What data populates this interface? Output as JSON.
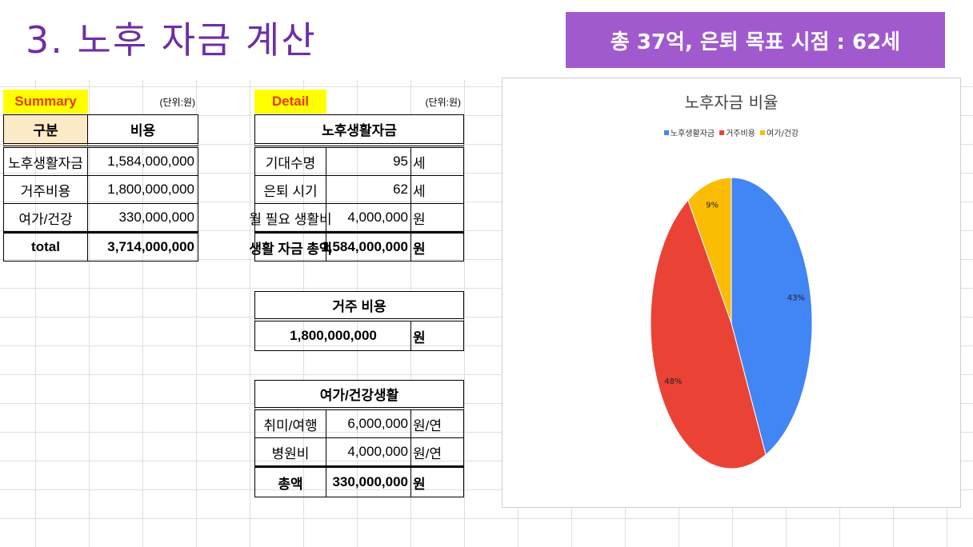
{
  "title": "3. 노후 자금 계산",
  "goal_banner": "총 37억, 은퇴 목표 시점 : 62세",
  "summary": {
    "tag": "Summary",
    "unit_note": "(단위:원)",
    "headers": [
      "구분",
      "비용"
    ],
    "rows": [
      {
        "label": "노후생활자금",
        "value": "1,584,000,000"
      },
      {
        "label": "거주비용",
        "value": "1,800,000,000"
      },
      {
        "label": "여가/건강",
        "value": "330,000,000"
      }
    ],
    "total": {
      "label": "total",
      "value": "3,714,000,000"
    }
  },
  "detail": {
    "tag": "Detail",
    "unit_note": "(단위:원)",
    "living": {
      "header": "노후생활자금",
      "rows": [
        {
          "label": "기대수명",
          "value": "95",
          "unit": "세"
        },
        {
          "label": "은퇴 시기",
          "value": "62",
          "unit": "세"
        },
        {
          "label": "월 필요 생활비",
          "value": "4,000,000",
          "unit": "원"
        },
        {
          "label": "생활 자금 총액",
          "value": "1,584,000,000",
          "unit": "원"
        }
      ]
    },
    "housing": {
      "header": "거주 비용",
      "value": "1,800,000,000",
      "unit": "원"
    },
    "leisure": {
      "header": "여가/건강생활",
      "rows": [
        {
          "label": "취미/여행",
          "value": "6,000,000",
          "unit": "원/연"
        },
        {
          "label": "병원비",
          "value": "4,000,000",
          "unit": "원/연"
        },
        {
          "label": "총액",
          "value": "330,000,000",
          "unit": "원"
        }
      ]
    }
  },
  "chart_data": {
    "type": "pie",
    "title": "노후자금 비율",
    "labels": [
      "노후생활자금",
      "거주비용",
      "여가/건강"
    ],
    "values": [
      43,
      48,
      9
    ],
    "data_labels": [
      "43%",
      "48%",
      "9%"
    ],
    "colors": [
      "#4285f4",
      "#ea4335",
      "#fbbc04"
    ],
    "legend_position": "top"
  }
}
